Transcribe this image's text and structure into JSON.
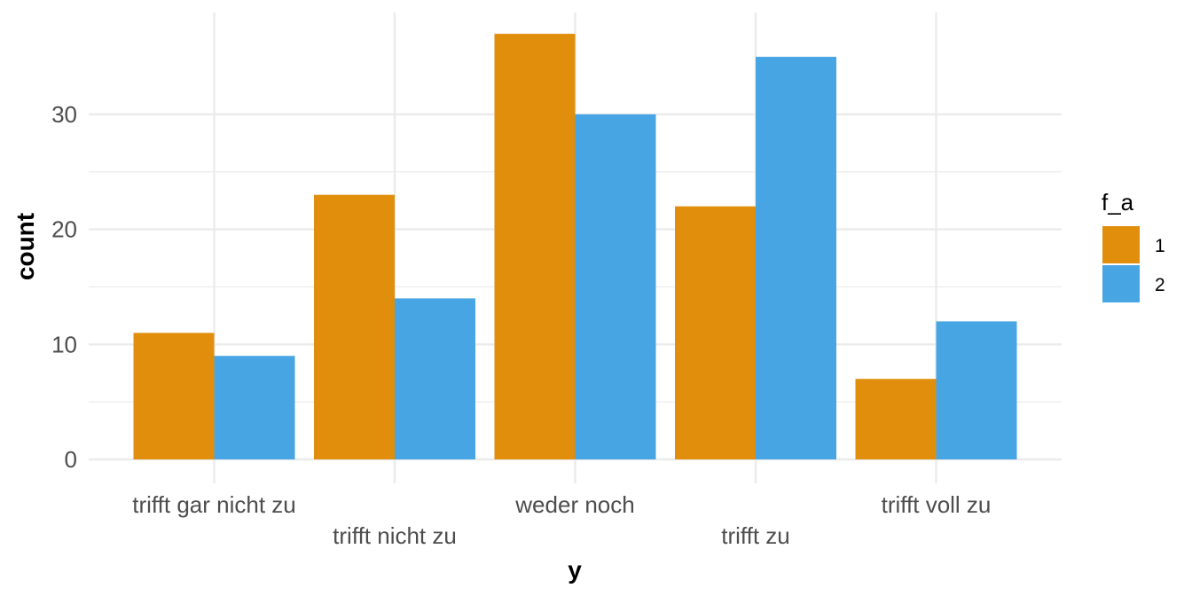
{
  "chart_data": {
    "type": "bar",
    "xlabel": "y",
    "ylabel": "count",
    "categories": [
      "trifft gar nicht zu",
      "trifft nicht zu",
      "weder noch",
      "trifft zu",
      "trifft voll zu"
    ],
    "series": [
      {
        "name": "1",
        "values": [
          11,
          23,
          37,
          22,
          7
        ],
        "color": "#E08E0B"
      },
      {
        "name": "2",
        "values": [
          9,
          14,
          30,
          35,
          12
        ],
        "color": "#48A5E3"
      }
    ],
    "ylim": [
      0,
      38
    ],
    "yticks": [
      0,
      10,
      20,
      30
    ],
    "grid": true,
    "legend": {
      "title": "f_a",
      "placement": "right"
    }
  }
}
